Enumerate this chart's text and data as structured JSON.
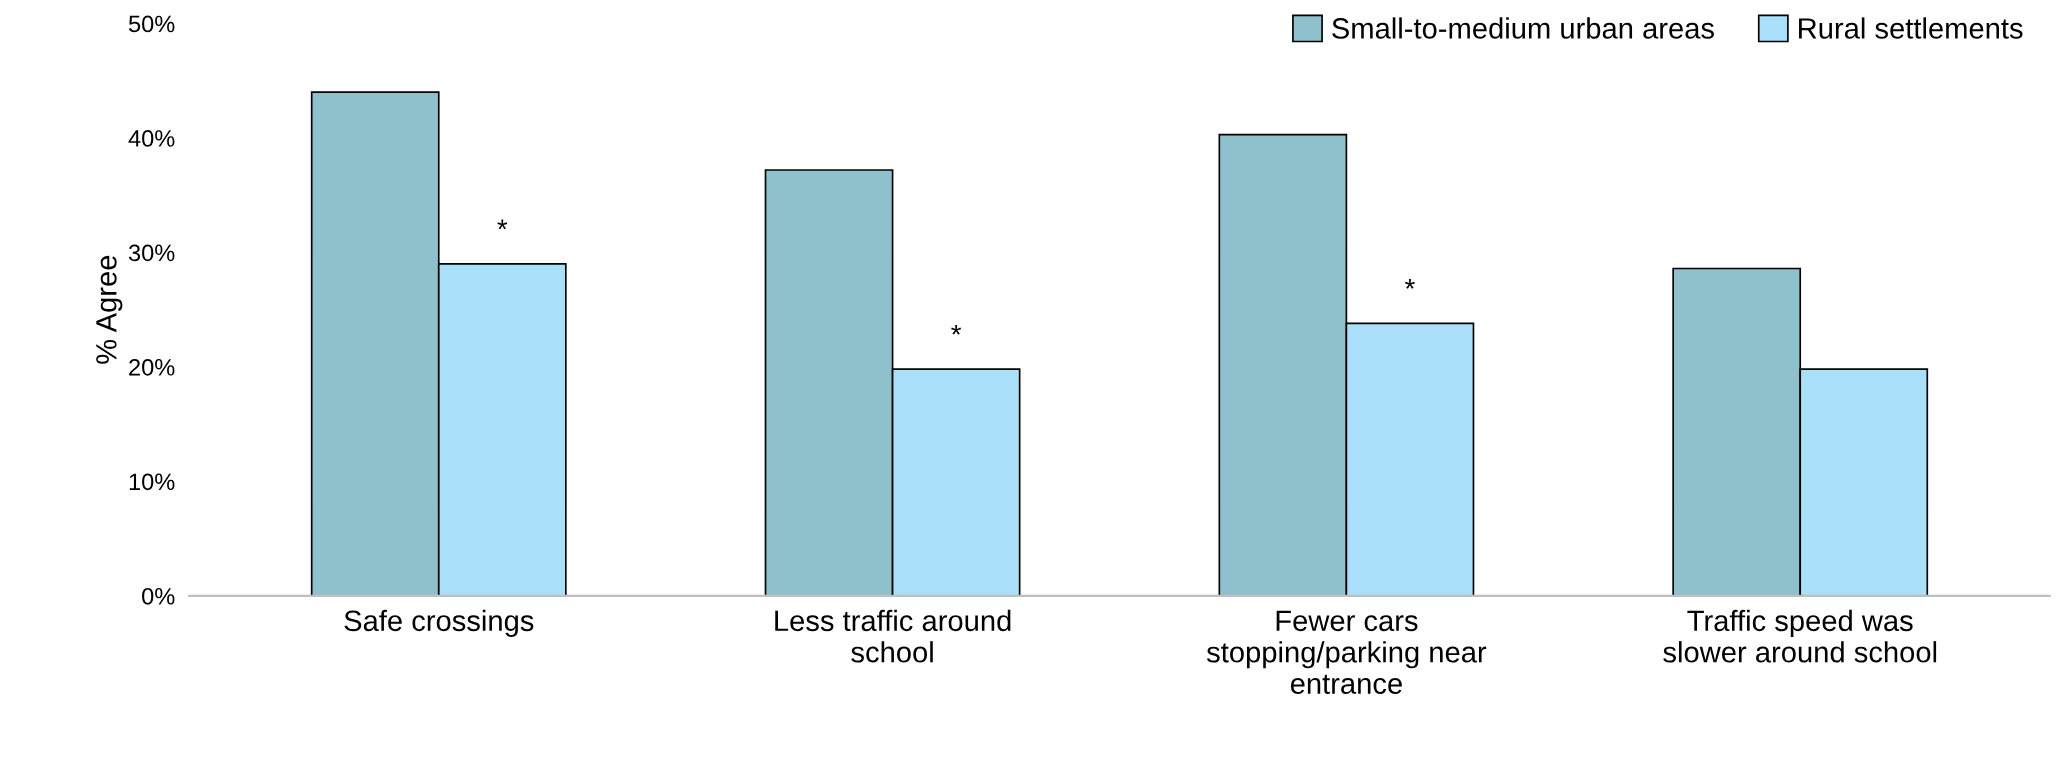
{
  "chart_data": {
    "type": "bar",
    "ylabel": "% Agree",
    "categories": [
      "Safe crossings",
      "Less traffic around\nschool",
      "Fewer cars\nstopping/parking near\nentrance",
      "Traffic speed was\nslower around school"
    ],
    "series": [
      {
        "name": "Small-to-medium urban areas",
        "color": "#8fc1cc",
        "values": [
          44.0,
          37.2,
          40.3,
          28.6
        ]
      },
      {
        "name": "Rural settlements",
        "color": "#a9dff8",
        "values": [
          29.0,
          19.8,
          23.8,
          19.8
        ]
      }
    ],
    "ylim": [
      0,
      50
    ],
    "yticks": [
      {
        "value": 0,
        "label": "0%"
      },
      {
        "value": 10,
        "label": "10%"
      },
      {
        "value": 20,
        "label": "20%"
      },
      {
        "value": 30,
        "label": "30%"
      },
      {
        "value": 40,
        "label": "40%"
      },
      {
        "value": 50,
        "label": "50%"
      }
    ],
    "annotations": [
      {
        "text": "*",
        "x": "Safe crossings",
        "y": 29.0
      },
      {
        "text": "*",
        "x": "Less traffic around\nschool",
        "y": 19.8
      },
      {
        "text": "*",
        "x": "Fewer cars\nstopping/parking near\nentrance",
        "y": 23.8
      }
    ],
    "grid": false,
    "legend": "top right"
  }
}
